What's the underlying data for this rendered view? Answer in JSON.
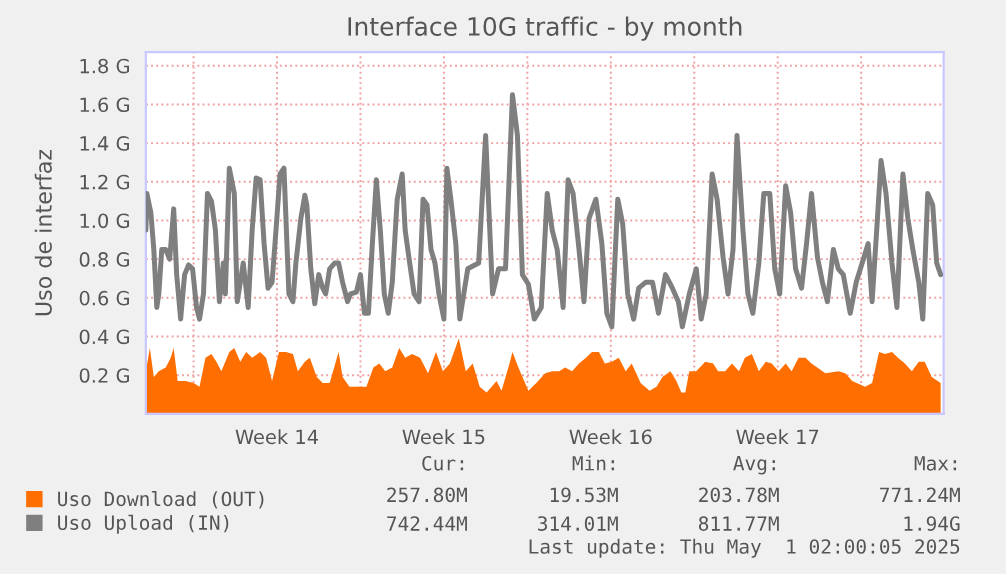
{
  "chart_data": {
    "type": "area",
    "title": "Interface 10G traffic - by month",
    "ylabel": "Uso de interfaz",
    "xlim": [
      "2025-03-29T00:00",
      "2025-05-01T11:00"
    ],
    "ylim": [
      0,
      1.87
    ],
    "xticks": [
      {
        "value": "2025-03-31",
        "label": null
      },
      {
        "value": "2025-04-03T12:00",
        "label": "Week 14"
      },
      {
        "value": "2025-04-07",
        "label": null
      },
      {
        "value": "2025-04-10T12:00",
        "label": "Week 15"
      },
      {
        "value": "2025-04-14",
        "label": null
      },
      {
        "value": "2025-04-17T12:00",
        "label": "Week 16"
      },
      {
        "value": "2025-04-21",
        "label": null
      },
      {
        "value": "2025-04-24T12:00",
        "label": "Week 17"
      },
      {
        "value": "2025-04-28",
        "label": null
      }
    ],
    "yticks": [
      {
        "value": 0.2,
        "label": "0.2 G"
      },
      {
        "value": 0.4,
        "label": "0.4 G"
      },
      {
        "value": 0.6,
        "label": "0.6 G"
      },
      {
        "value": 0.8,
        "label": "0.8 G"
      },
      {
        "value": 1.0,
        "label": "1.0 G"
      },
      {
        "value": 1.2,
        "label": "1.2 G"
      },
      {
        "value": 1.4,
        "label": "1.4 G"
      },
      {
        "value": 1.6,
        "label": "1.6 G"
      },
      {
        "value": 1.8,
        "label": "1.8 G"
      }
    ],
    "grid": true,
    "legend": "bottom",
    "series": [
      {
        "name": "Uso Download (OUT)",
        "color": "#ff6e00",
        "x": [
          "2025-03-29T00:00",
          "2025-03-29T04:00",
          "2025-03-29T08:00",
          "2025-03-29T13:00",
          "2025-03-29T20:00",
          "2025-03-30T01:00",
          "2025-03-30T04:00",
          "2025-03-30T08:00",
          "2025-03-30T16:00",
          "2025-03-31T00:00",
          "2025-03-31T06:00",
          "2025-03-31T12:00",
          "2025-03-31T18:00",
          "2025-03-31T23:00",
          "2025-04-01T04:00",
          "2025-04-01T12:00",
          "2025-04-01T17:00",
          "2025-04-01T23:00",
          "2025-04-02T05:00",
          "2025-04-02T11:00",
          "2025-04-02T19:00",
          "2025-04-03T01:00",
          "2025-04-03T07:00",
          "2025-04-03T14:00",
          "2025-04-03T21:00",
          "2025-04-04T04:00",
          "2025-04-04T09:00",
          "2025-04-04T16:00",
          "2025-04-04T21:00",
          "2025-04-05T04:00",
          "2025-04-05T10:00",
          "2025-04-05T17:00",
          "2025-04-06T02:00",
          "2025-04-06T06:00",
          "2025-04-06T13:00",
          "2025-04-06T23:00",
          "2025-04-07T06:00",
          "2025-04-07T13:00",
          "2025-04-07T19:00",
          "2025-04-08T01:00",
          "2025-04-08T08:00",
          "2025-04-08T15:00",
          "2025-04-08T21:00",
          "2025-04-09T04:00",
          "2025-04-09T12:00",
          "2025-04-09T20:00",
          "2025-04-10T04:00",
          "2025-04-10T11:00",
          "2025-04-10T18:00",
          "2025-04-11T03:00",
          "2025-04-11T10:00",
          "2025-04-11T17:00",
          "2025-04-12T00:00",
          "2025-04-12T07:00",
          "2025-04-12T17:00",
          "2025-04-12T22:00",
          "2025-04-13T06:00",
          "2025-04-13T09:00",
          "2025-04-13T15:00",
          "2025-04-14T01:00",
          "2025-04-14T09:00",
          "2025-04-14T18:00",
          "2025-04-15T01:00",
          "2025-04-15T08:00",
          "2025-04-15T14:00",
          "2025-04-15T21:00",
          "2025-04-16T04:00",
          "2025-04-16T11:00",
          "2025-04-16T17:00",
          "2025-04-17T00:00",
          "2025-04-17T06:00",
          "2025-04-17T13:00",
          "2025-04-17T20:00",
          "2025-04-18T03:00",
          "2025-04-18T09:00",
          "2025-04-18T18:00",
          "2025-04-19T03:00",
          "2025-04-19T10:00",
          "2025-04-19T16:00",
          "2025-04-20T00:00",
          "2025-04-20T06:00",
          "2025-04-20T11:00",
          "2025-04-20T15:00",
          "2025-04-20T19:00",
          "2025-04-21T02:00",
          "2025-04-21T11:00",
          "2025-04-21T19:00",
          "2025-04-22T00:00",
          "2025-04-22T07:00",
          "2025-04-22T14:00",
          "2025-04-22T21:00",
          "2025-04-23T03:00",
          "2025-04-23T10:00",
          "2025-04-23T17:00",
          "2025-04-24T00:00",
          "2025-04-24T06:00",
          "2025-04-24T13:00",
          "2025-04-24T20:00",
          "2025-04-25T02:00",
          "2025-04-25T09:00",
          "2025-04-25T16:00",
          "2025-04-25T22:00",
          "2025-04-26T12:00",
          "2025-04-27T01:00",
          "2025-04-27T08:00",
          "2025-04-27T15:00",
          "2025-04-28T04:00",
          "2025-04-28T11:00",
          "2025-04-28T18:00",
          "2025-04-29T00:00",
          "2025-04-29T07:00",
          "2025-04-29T13:00",
          "2025-04-29T20:00",
          "2025-04-30T03:00",
          "2025-04-30T10:00",
          "2025-04-30T16:00",
          "2025-04-30T23:00",
          "2025-05-01T08:00"
        ],
        "values": [
          0.22,
          0.34,
          0.19,
          0.22,
          0.24,
          0.29,
          0.34,
          0.17,
          0.17,
          0.16,
          0.14,
          0.29,
          0.31,
          0.27,
          0.22,
          0.32,
          0.34,
          0.27,
          0.32,
          0.29,
          0.32,
          0.29,
          0.17,
          0.32,
          0.32,
          0.31,
          0.22,
          0.27,
          0.29,
          0.19,
          0.16,
          0.16,
          0.32,
          0.19,
          0.14,
          0.14,
          0.14,
          0.24,
          0.26,
          0.22,
          0.24,
          0.34,
          0.29,
          0.31,
          0.29,
          0.21,
          0.32,
          0.22,
          0.26,
          0.39,
          0.22,
          0.26,
          0.14,
          0.11,
          0.17,
          0.12,
          0.26,
          0.32,
          0.24,
          0.12,
          0.16,
          0.21,
          0.22,
          0.22,
          0.24,
          0.22,
          0.26,
          0.29,
          0.32,
          0.32,
          0.26,
          0.27,
          0.29,
          0.22,
          0.26,
          0.16,
          0.12,
          0.14,
          0.19,
          0.22,
          0.17,
          0.11,
          0.11,
          0.22,
          0.22,
          0.27,
          0.26,
          0.22,
          0.22,
          0.26,
          0.22,
          0.29,
          0.31,
          0.22,
          0.27,
          0.26,
          0.22,
          0.26,
          0.22,
          0.29,
          0.29,
          0.26,
          0.21,
          0.22,
          0.21,
          0.17,
          0.14,
          0.16,
          0.32,
          0.31,
          0.32,
          0.29,
          0.26,
          0.22,
          0.27,
          0.27,
          0.19,
          0.16
        ]
      },
      {
        "name": "Uso Upload (IN)",
        "type": "line",
        "color": "#7f7f7f",
        "x": [
          "2025-03-29T00:00",
          "2025-03-29T01:00",
          "2025-03-29T05:00",
          "2025-03-29T08:00",
          "2025-03-29T11:00",
          "2025-03-29T13:00",
          "2025-03-29T16:00",
          "2025-03-29T20:00",
          "2025-03-30T00:00",
          "2025-03-30T04:00",
          "2025-03-30T07:00",
          "2025-03-30T11:00",
          "2025-03-30T15:00",
          "2025-03-30T19:00",
          "2025-03-30T23:00",
          "2025-03-31T03:00",
          "2025-03-31T06:00",
          "2025-03-31T10:00",
          "2025-03-31T14:00",
          "2025-03-31T18:00",
          "2025-03-31T22:00",
          "2025-04-01T02:00",
          "2025-04-01T06:00",
          "2025-04-01T08:00",
          "2025-04-01T12:00",
          "2025-04-01T17:00",
          "2025-04-01T20:00",
          "2025-04-02T02:00",
          "2025-04-02T07:00",
          "2025-04-02T11:00",
          "2025-04-02T15:00",
          "2025-04-02T19:00",
          "2025-04-02T23:00",
          "2025-04-03T03:00",
          "2025-04-03T07:00",
          "2025-04-03T11:00",
          "2025-04-03T15:00",
          "2025-04-03T19:00",
          "2025-04-04T00:00",
          "2025-04-04T04:00",
          "2025-04-04T07:00",
          "2025-04-04T12:00",
          "2025-04-04T16:00",
          "2025-04-04T18:00",
          "2025-04-04T22:00",
          "2025-04-05T02:00",
          "2025-04-05T06:00",
          "2025-04-05T10:00",
          "2025-04-05T13:00",
          "2025-04-05T17:00",
          "2025-04-05T22:00",
          "2025-04-06T02:00",
          "2025-04-06T06:00",
          "2025-04-06T11:00",
          "2025-04-06T14:00",
          "2025-04-06T20:00",
          "2025-04-07T00:00",
          "2025-04-07T04:00",
          "2025-04-07T08:00",
          "2025-04-07T12:00",
          "2025-04-07T16:00",
          "2025-04-07T20:00",
          "2025-04-08T00:00",
          "2025-04-08T04:00",
          "2025-04-08T08:00",
          "2025-04-08T13:00",
          "2025-04-08T18:00",
          "2025-04-08T21:00",
          "2025-04-09T01:00",
          "2025-04-09T06:00",
          "2025-04-09T11:00",
          "2025-04-09T15:00",
          "2025-04-09T19:00",
          "2025-04-09T23:00",
          "2025-04-10T03:00",
          "2025-04-10T07:00",
          "2025-04-10T12:00",
          "2025-04-10T15:00",
          "2025-04-10T19:00",
          "2025-04-11T00:00",
          "2025-04-11T04:00",
          "2025-04-11T08:00",
          "2025-04-11T12:00",
          "2025-04-11T23:00",
          "2025-04-12T06:00",
          "2025-04-12T13:00",
          "2025-04-12T19:00",
          "2025-04-13T02:00",
          "2025-04-13T09:00",
          "2025-04-13T14:00",
          "2025-04-13T19:00",
          "2025-04-14T01:00",
          "2025-04-14T07:00",
          "2025-04-14T14:00",
          "2025-04-14T20:00",
          "2025-04-15T01:00",
          "2025-04-15T06:00",
          "2025-04-15T12:00",
          "2025-04-15T17:00",
          "2025-04-15T22:00",
          "2025-04-16T04:00",
          "2025-04-16T09:00",
          "2025-04-16T14:00",
          "2025-04-16T21:00",
          "2025-04-17T03:00",
          "2025-04-17T08:00",
          "2025-04-17T13:00",
          "2025-04-17T19:00",
          "2025-04-18T00:00",
          "2025-04-18T05:00",
          "2025-04-18T11:00",
          "2025-04-18T16:00",
          "2025-04-18T23:00",
          "2025-04-19T06:00",
          "2025-04-19T12:00",
          "2025-04-19T19:00",
          "2025-04-20T02:00",
          "2025-04-20T08:00",
          "2025-04-20T12:00",
          "2025-04-20T19:00",
          "2025-04-21T02:00",
          "2025-04-21T07:00",
          "2025-04-21T12:00",
          "2025-04-21T18:00",
          "2025-04-21T23:00",
          "2025-04-22T05:00",
          "2025-04-22T10:00",
          "2025-04-22T15:00",
          "2025-04-22T19:00",
          "2025-04-23T01:00",
          "2025-04-23T06:00",
          "2025-04-23T11:00",
          "2025-04-23T17:00",
          "2025-04-23T22:00",
          "2025-04-24T04:00",
          "2025-04-24T09:00",
          "2025-04-24T14:00",
          "2025-04-24T20:00",
          "2025-04-25T01:00",
          "2025-04-25T06:00",
          "2025-04-25T12:00",
          "2025-04-25T17:00",
          "2025-04-25T22:00",
          "2025-04-26T04:00",
          "2025-04-26T09:00",
          "2025-04-26T14:00",
          "2025-04-26T20:00",
          "2025-04-27T01:00",
          "2025-04-27T06:00",
          "2025-04-27T13:00",
          "2025-04-27T19:00",
          "2025-04-28T01:00",
          "2025-04-28T07:00",
          "2025-04-28T11:00",
          "2025-04-28T16:00",
          "2025-04-28T20:00",
          "2025-04-29T01:00",
          "2025-04-29T07:00",
          "2025-04-29T12:00",
          "2025-04-29T18:00",
          "2025-04-29T23:00",
          "2025-04-30T04:00",
          "2025-04-30T10:00",
          "2025-04-30T14:00",
          "2025-04-30T19:00",
          "2025-05-01T00:00",
          "2025-05-01T04:00",
          "2025-05-01T08:00"
        ],
        "values": [
          0.95,
          1.14,
          1.04,
          0.85,
          0.55,
          0.62,
          0.85,
          0.85,
          0.8,
          1.06,
          0.72,
          0.49,
          0.72,
          0.77,
          0.75,
          0.55,
          0.49,
          0.62,
          1.14,
          1.1,
          0.95,
          0.58,
          0.78,
          0.62,
          1.27,
          1.14,
          0.58,
          0.78,
          0.55,
          0.95,
          1.22,
          1.21,
          0.88,
          0.65,
          0.68,
          0.95,
          1.24,
          1.27,
          0.62,
          0.58,
          0.78,
          1.01,
          1.13,
          1.08,
          0.75,
          0.57,
          0.72,
          0.65,
          0.62,
          0.75,
          0.78,
          0.78,
          0.68,
          0.58,
          0.62,
          0.63,
          0.72,
          0.52,
          0.52,
          0.88,
          1.21,
          0.95,
          0.62,
          0.52,
          0.68,
          1.11,
          1.24,
          0.95,
          0.8,
          0.62,
          0.58,
          1.11,
          1.08,
          0.85,
          0.78,
          0.62,
          0.49,
          1.27,
          1.11,
          0.88,
          0.49,
          0.62,
          0.75,
          0.78,
          1.44,
          0.62,
          0.75,
          0.75,
          1.65,
          1.44,
          0.72,
          0.67,
          0.49,
          0.55,
          1.14,
          0.95,
          0.85,
          0.55,
          1.21,
          1.14,
          0.85,
          0.58,
          1.01,
          1.11,
          0.88,
          0.52,
          0.45,
          1.11,
          0.98,
          0.62,
          0.49,
          0.65,
          0.68,
          0.68,
          0.52,
          0.72,
          0.65,
          0.58,
          0.45,
          0.62,
          0.75,
          0.49,
          0.62,
          1.24,
          1.11,
          0.81,
          0.62,
          0.85,
          1.44,
          0.95,
          0.62,
          0.52,
          0.78,
          1.14,
          1.14,
          0.75,
          0.62,
          1.18,
          1.04,
          0.75,
          0.65,
          0.88,
          1.14,
          0.81,
          0.68,
          0.58,
          0.85,
          0.75,
          0.72,
          0.52,
          0.68,
          0.78,
          0.88,
          0.58,
          0.98,
          1.31,
          1.14,
          0.78,
          0.55,
          1.24,
          1.01,
          0.85,
          0.68,
          0.49,
          1.14,
          1.08,
          0.78,
          0.72
        ]
      }
    ],
    "annotations": [
      "Cur:",
      "Min:",
      "Avg:",
      "Max:",
      "257.80M",
      "19.53M",
      "203.78M",
      "771.24M",
      "742.44M",
      "314.01M",
      "811.77M",
      "1.94G",
      "Last update: Thu May  1 02:00:05 2025"
    ]
  }
}
